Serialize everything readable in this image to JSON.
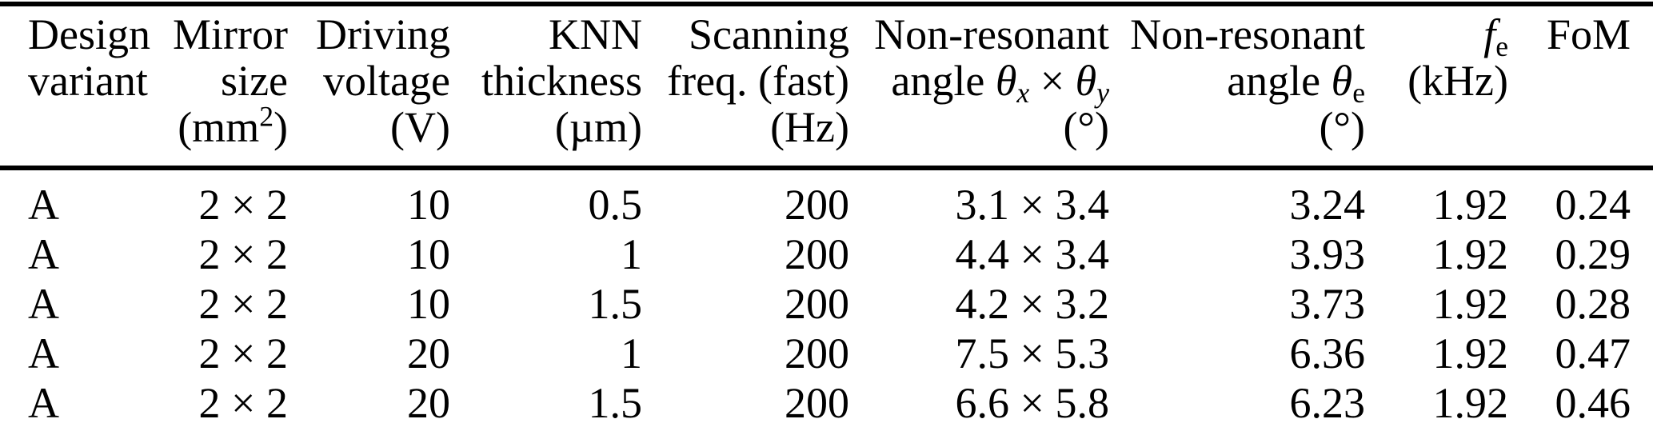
{
  "meta": {
    "background": "#ffffff",
    "text_color": "#000000",
    "rule_color": "#000000"
  },
  "table": {
    "header": {
      "columns": [
        {
          "name": "design-variant",
          "lines": [
            "Design",
            "variant",
            ""
          ]
        },
        {
          "name": "mirror-size",
          "lines": [
            "Mirror",
            "size",
            "(mm<sup>2</sup>)"
          ]
        },
        {
          "name": "driving-voltage",
          "lines": [
            "Driving",
            "voltage",
            "(V)"
          ]
        },
        {
          "name": "knn-thickness",
          "lines": [
            "KNN",
            "thickness",
            "(µm)"
          ]
        },
        {
          "name": "scanning-freq",
          "lines": [
            "Scanning",
            "freq. (fast)",
            "(Hz)"
          ]
        },
        {
          "name": "nonresonant-angle-xy",
          "lines": [
            "Non-resonant",
            "angle <i>θ<sub>x</sub></i> × <i>θ<sub>y</sub></i>",
            "(°)"
          ]
        },
        {
          "name": "nonresonant-angle-e",
          "lines": [
            "Non-resonant",
            "angle <i>θ</i><sub>e</sub>",
            "(°)"
          ]
        },
        {
          "name": "fe-khz",
          "lines": [
            "<i>f</i><sub>e</sub>",
            "(kHz)",
            ""
          ]
        },
        {
          "name": "fom",
          "lines": [
            "FoM",
            "",
            ""
          ]
        }
      ]
    },
    "rows": [
      [
        "A",
        "2 × 2",
        "10",
        "0.5",
        "200",
        "3.1 × 3.4",
        "3.24",
        "1.92",
        "0.24"
      ],
      [
        "A",
        "2 × 2",
        "10",
        "1",
        "200",
        "4.4 × 3.4",
        "3.93",
        "1.92",
        "0.29"
      ],
      [
        "A",
        "2 × 2",
        "10",
        "1.5",
        "200",
        "4.2 × 3.2",
        "3.73",
        "1.92",
        "0.28"
      ],
      [
        "A",
        "2 × 2",
        "20",
        "1",
        "200",
        "7.5 × 5.3",
        "6.36",
        "1.92",
        "0.47"
      ],
      [
        "A",
        "2 × 2",
        "20",
        "1.5",
        "200",
        "6.6 × 5.8",
        "6.23",
        "1.92",
        "0.46"
      ]
    ]
  }
}
